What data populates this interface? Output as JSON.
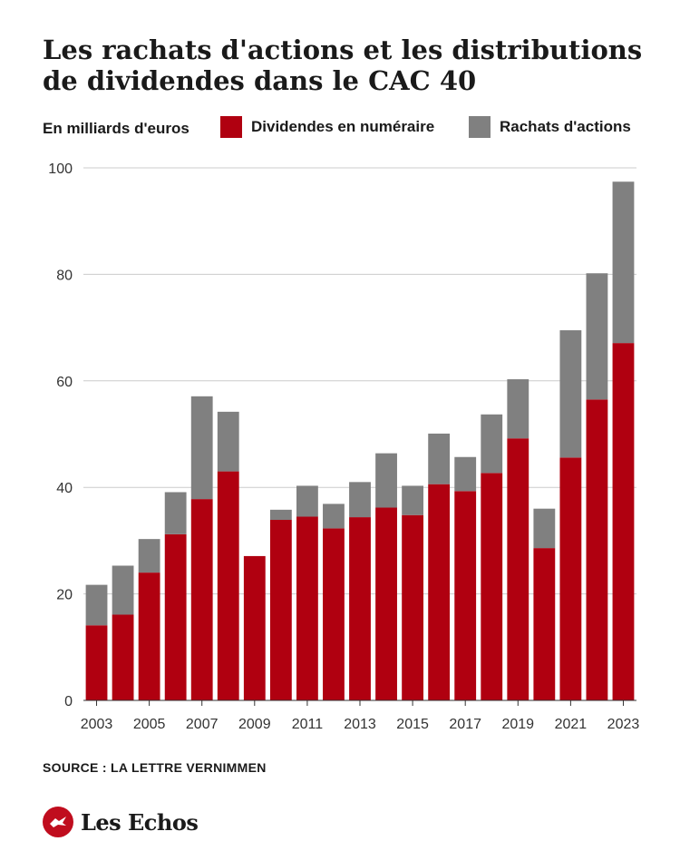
{
  "title": "Les rachats d'actions et les distributions de dividendes dans le CAC 40",
  "unit_label": "En milliards d'euros",
  "source": "SOURCE : LA LETTRE VERNIMMEN",
  "brand": "Les Echos",
  "colors": {
    "dividendes": "#b00010",
    "rachats": "#808080",
    "grid": "#cccccc",
    "brand_red": "#c00d1e"
  },
  "chart_data": {
    "type": "bar",
    "stacked": true,
    "ylim": [
      0,
      100
    ],
    "yticks": [
      0,
      20,
      40,
      60,
      80,
      100
    ],
    "grid": true,
    "legend_position": "top",
    "categories": [
      "2003",
      "2004",
      "2005",
      "2006",
      "2007",
      "2008",
      "2009",
      "2010",
      "2011",
      "2012",
      "2013",
      "2014",
      "2015",
      "2016",
      "2017",
      "2018",
      "2019",
      "2020",
      "2021",
      "2022",
      "2023"
    ],
    "xtick_labels": [
      "2003",
      "",
      "2005",
      "",
      "2007",
      "",
      "2009",
      "",
      "2011",
      "",
      "2013",
      "",
      "2015",
      "",
      "2017",
      "",
      "2019",
      "",
      "2021",
      "",
      "2023"
    ],
    "series": [
      {
        "name": "Dividendes en numéraire",
        "values": [
          14.1,
          16.1,
          24.0,
          31.2,
          37.8,
          43.0,
          27.1,
          33.9,
          34.5,
          32.3,
          34.4,
          36.2,
          34.8,
          40.6,
          39.3,
          42.7,
          49.2,
          28.6,
          45.6,
          56.5,
          67.1
        ]
      },
      {
        "name": "Rachats d'actions",
        "values": [
          7.6,
          9.2,
          6.3,
          7.9,
          19.3,
          11.2,
          0.0,
          1.9,
          5.8,
          4.6,
          6.6,
          10.2,
          5.5,
          9.5,
          6.4,
          11.0,
          11.1,
          7.4,
          23.9,
          23.7,
          30.3
        ]
      }
    ]
  }
}
